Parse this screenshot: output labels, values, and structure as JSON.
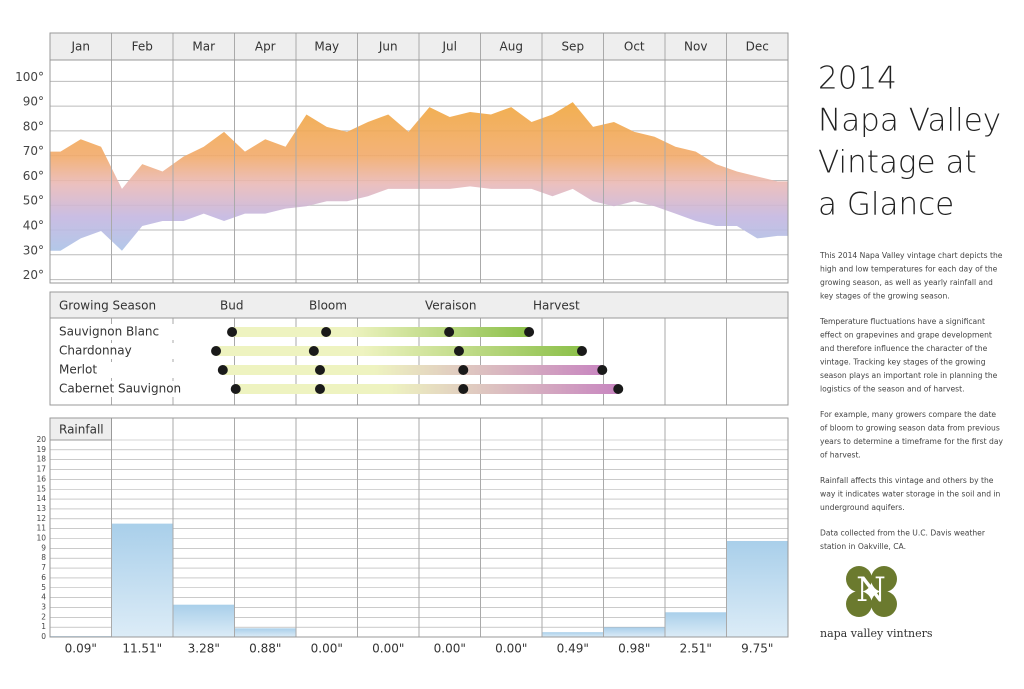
{
  "chart_data": [
    {
      "type": "area",
      "categories": [
        "Jan",
        "Feb",
        "Mar",
        "Apr",
        "May",
        "Jun",
        "Jul",
        "Aug",
        "Sep",
        "Oct",
        "Nov",
        "Dec"
      ],
      "x": [
        0.17,
        0.5,
        0.83,
        1.17,
        1.5,
        1.83,
        2.17,
        2.5,
        2.83,
        3.17,
        3.5,
        3.83,
        4.17,
        4.5,
        4.83,
        5.17,
        5.5,
        5.83,
        6.17,
        6.5,
        6.83,
        7.17,
        7.5,
        7.83,
        8.17,
        8.5,
        8.83,
        9.17,
        9.5,
        9.83,
        10.17,
        10.5,
        10.83,
        11.17,
        11.5,
        11.83
      ],
      "xlim": [
        0,
        12
      ],
      "series": [
        {
          "values": [
            70,
            75,
            72,
            55,
            65,
            62,
            68,
            72,
            78,
            70,
            75,
            72,
            85,
            80,
            78,
            82,
            85,
            78,
            88,
            84,
            86,
            85,
            88,
            82,
            85,
            90,
            80,
            82,
            78,
            76,
            72,
            70,
            65,
            62,
            60,
            58
          ]
        },
        {
          "values": [
            30,
            35,
            38,
            30,
            40,
            42,
            42,
            45,
            42,
            45,
            45,
            47,
            48,
            50,
            50,
            52,
            55,
            55,
            55,
            55,
            56,
            55,
            55,
            55,
            52,
            55,
            50,
            48,
            50,
            48,
            45,
            42,
            40,
            40,
            35,
            36
          ]
        }
      ],
      "ylim": [
        17,
        107
      ],
      "yticks": [
        {
          "value": 20,
          "label": "20°"
        },
        {
          "value": 30,
          "label": "30°"
        },
        {
          "value": 40,
          "label": "40°"
        },
        {
          "value": 50,
          "label": "50°"
        },
        {
          "value": 60,
          "label": "60°"
        },
        {
          "value": 70,
          "label": "70°"
        },
        {
          "value": 80,
          "label": "80°"
        },
        {
          "value": 90,
          "label": "90°"
        },
        {
          "value": 100,
          "label": "100°"
        }
      ],
      "grid": true
    },
    {
      "type": "timeline",
      "title": "Growing Season",
      "stages": [
        "Bud",
        "Bloom",
        "Veraison",
        "Harvest"
      ],
      "xlim": [
        0,
        12
      ],
      "series": [
        {
          "name": "Sauvignon Blanc",
          "colors": [
            "#eef3c0",
            "#8cc04a"
          ],
          "values": [
            2.96,
            4.49,
            6.49,
            7.79
          ]
        },
        {
          "name": "Chardonnay",
          "colors": [
            "#eef3c0",
            "#8cc04a"
          ],
          "values": [
            2.7,
            4.29,
            6.65,
            8.65
          ]
        },
        {
          "name": "Merlot",
          "colors": [
            "#eef3c0",
            "#c886c0"
          ],
          "values": [
            2.81,
            4.39,
            6.72,
            8.98
          ]
        },
        {
          "name": "Cabernet Sauvignon",
          "colors": [
            "#eef3c0",
            "#c886c0"
          ],
          "values": [
            3.02,
            4.39,
            6.72,
            9.24
          ]
        }
      ]
    },
    {
      "type": "bar",
      "title": "Rainfall",
      "values": [
        0.09,
        11.51,
        3.28,
        0.88,
        0,
        0,
        0,
        0,
        0.49,
        0.98,
        2.51,
        9.75
      ],
      "value_labels": [
        "0.09\"",
        "11.51\"",
        "3.28\"",
        "0.88\"",
        "0.00\"",
        "0.00\"",
        "0.00\"",
        "0.00\"",
        "0.49\"",
        "0.98\"",
        "2.51\"",
        "9.75\""
      ],
      "color": "#b8d8ee",
      "ylim": [
        0,
        20
      ],
      "yticks": [
        0,
        1,
        2,
        3,
        4,
        5,
        6,
        7,
        8,
        9,
        10,
        11,
        12,
        13,
        14,
        15,
        16,
        17,
        18,
        19,
        20
      ],
      "grid": true
    }
  ],
  "sidebar": {
    "title_lines": [
      "2014",
      "Napa Valley",
      "Vintage at",
      "a Glance"
    ],
    "paragraphs": [
      [
        "This 2014 Napa Valley vintage chart depicts the",
        "high and low temperatures for each day of the",
        "growing season, as well as yearly rainfall and",
        "key stages of the growing season."
      ],
      [
        "Temperature fluctuations have a significant",
        "effect on grapevines and grape development",
        "and therefore influence the character of the",
        "vintage. Tracking key stages of the growing",
        "season plays an important role in planning the",
        "logistics of the season and of harvest."
      ],
      [
        "For example, many growers compare the date",
        "of bloom to growing season data from previous",
        "years to determine a timeframe for the first day",
        "of harvest."
      ],
      [
        "Rainfall affects this vintage and others by the",
        "way it indicates water storage in the soil and in",
        "underground aquifers."
      ],
      [
        "Data collected from the U.C. Davis weather",
        "station in Oakville, CA."
      ]
    ],
    "logo_letter": "N",
    "logo_text": "napa valley vintners"
  }
}
